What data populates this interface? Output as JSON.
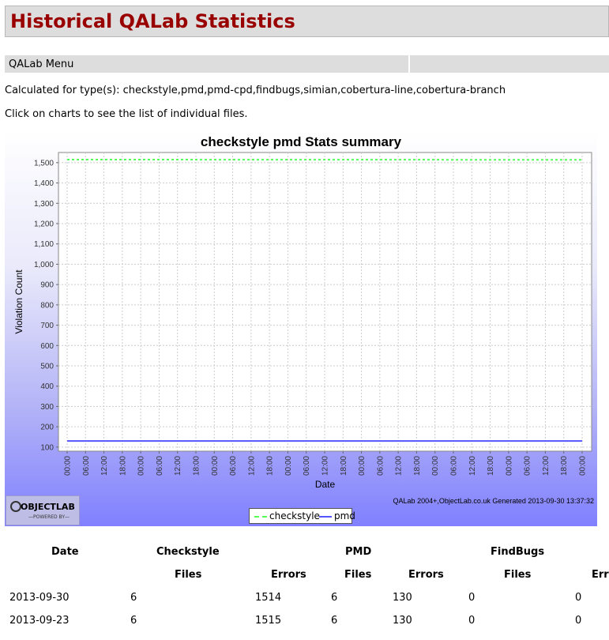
{
  "page": {
    "title": "Historical QALab Statistics",
    "menu_label": "QALab Menu",
    "calculated_for": "Calculated for type(s): checkstyle,pmd,pmd-cpd,findbugs,simian,cobertura-line,cobertura-branch",
    "click_hint": "Click on charts to see the list of individual files."
  },
  "chart_data": {
    "type": "line",
    "title": "checkstyle pmd  Stats summary",
    "xlabel": "Date",
    "ylabel": "Violation Count",
    "ylim": [
      80,
      1550
    ],
    "y_ticks": [
      100,
      200,
      300,
      400,
      500,
      600,
      700,
      800,
      900,
      1000,
      1100,
      1200,
      1300,
      1400,
      1500
    ],
    "y_tick_labels": [
      "100",
      "200",
      "300",
      "400",
      "500",
      "600",
      "700",
      "800",
      "900",
      "1,000",
      "1,100",
      "1,200",
      "1,300",
      "1,400",
      "1,500"
    ],
    "x_tick_labels": [
      "00:00",
      "06:00",
      "12:00",
      "18:00",
      "00:00",
      "06:00",
      "12:00",
      "18:00",
      "00:00",
      "06:00",
      "12:00",
      "18:00",
      "00:00",
      "06:00",
      "12:00",
      "18:00",
      "00:00",
      "06:00",
      "12:00",
      "18:00",
      "00:00",
      "06:00",
      "12:00",
      "18:00",
      "00:00",
      "06:00",
      "12:00",
      "18:00",
      "00:00"
    ],
    "x": [
      "2013-09-23",
      "2013-09-30"
    ],
    "series": [
      {
        "name": "checkstyle",
        "values": [
          1515,
          1514
        ],
        "color": "#55ff55",
        "style": "dashed"
      },
      {
        "name": "pmd",
        "values": [
          130,
          130
        ],
        "color": "#5555ff",
        "style": "solid"
      }
    ],
    "grid": true,
    "legend": "bottom-center",
    "footer": "QALab 2004+,ObjectLab.co.uk  Generated 2013-09-30 13:37:32",
    "logo_text": "OBJECTLAB",
    "logo_sub": "—POWERED BY—"
  },
  "table": {
    "top_headers": [
      "Date",
      "Checkstyle",
      "PMD",
      "FindBugs"
    ],
    "sub_headers": [
      "Files",
      "Errors",
      "Files",
      "Errors",
      "Files",
      "Errors"
    ],
    "rows": [
      [
        "2013-09-30",
        "6",
        "1514",
        "6",
        "130",
        "0",
        "0"
      ],
      [
        "2013-09-23",
        "6",
        "1515",
        "6",
        "130",
        "0",
        "0"
      ]
    ]
  }
}
